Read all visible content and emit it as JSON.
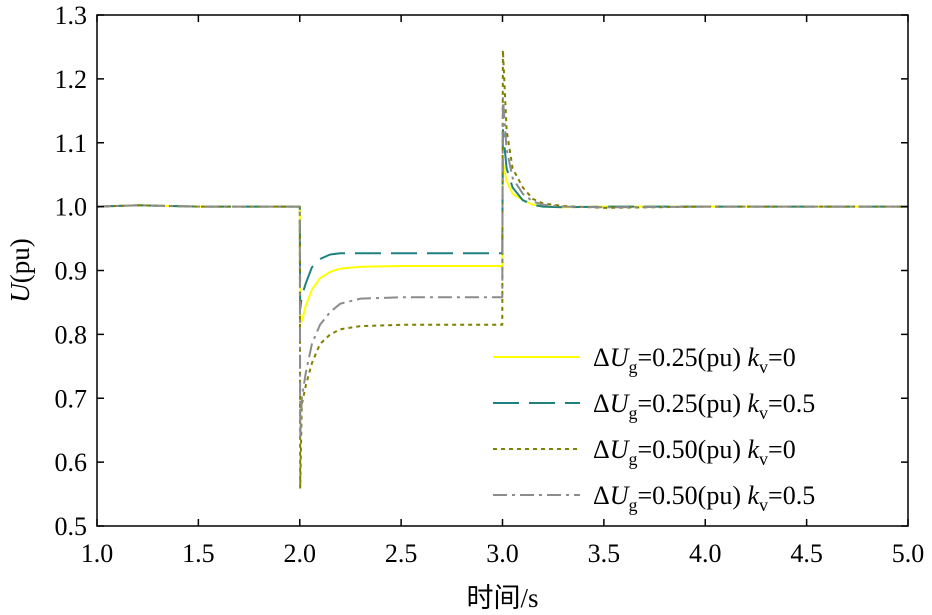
{
  "chart_data": {
    "type": "line",
    "xlabel": "时间/s",
    "ylabel": "U(pu)",
    "xlim": [
      1.0,
      5.0
    ],
    "ylim": [
      0.5,
      1.3
    ],
    "xticks": [
      "1.0",
      "1.5",
      "2.0",
      "2.5",
      "3.0",
      "3.5",
      "4.0",
      "4.5",
      "5.0"
    ],
    "yticks": [
      "0.5",
      "0.6",
      "0.7",
      "0.8",
      "0.9",
      "1.0",
      "1.1",
      "1.2",
      "1.3"
    ],
    "grid": false,
    "legend_position": "bottom-right",
    "series": [
      {
        "legend": {
          "delta": "ΔU",
          "sub": "g",
          "mid": "=0.25(pu) ",
          "k": "k",
          "ksub": "v",
          "tail": "=0"
        },
        "color": "#ffff00",
        "dash": "solid",
        "x": [
          1.0,
          1.2,
          1.5,
          1.99,
          2.0,
          2.002,
          2.01,
          2.03,
          2.06,
          2.1,
          2.15,
          2.2,
          2.3,
          2.5,
          2.999,
          3.0,
          3.002,
          3.02,
          3.05,
          3.1,
          3.15,
          3.2,
          3.3,
          3.5,
          4.0,
          5.0
        ],
        "y": [
          1.0,
          1.002,
          1.0,
          1.0,
          1.0,
          0.82,
          0.82,
          0.845,
          0.87,
          0.888,
          0.898,
          0.903,
          0.906,
          0.907,
          0.907,
          1.0,
          1.07,
          1.04,
          1.02,
          1.01,
          1.003,
          1.0,
          0.999,
          1.0,
          1.0,
          1.0
        ]
      },
      {
        "legend": {
          "delta": "ΔU",
          "sub": "g",
          "mid": "=0.25(pu) ",
          "k": "k",
          "ksub": "v",
          "tail": "=0.5"
        },
        "color": "#1f8080",
        "dash": "long-dash",
        "x": [
          1.0,
          1.2,
          1.5,
          1.99,
          2.0,
          2.002,
          2.01,
          2.03,
          2.06,
          2.1,
          2.15,
          2.2,
          2.5,
          2.999,
          3.0,
          3.002,
          3.02,
          3.05,
          3.1,
          3.15,
          3.2,
          3.3,
          3.5,
          4.0,
          5.0
        ],
        "y": [
          1.0,
          1.002,
          1.0,
          1.0,
          1.0,
          0.84,
          0.86,
          0.88,
          0.905,
          0.918,
          0.925,
          0.927,
          0.927,
          0.927,
          1.0,
          1.12,
          1.06,
          1.03,
          1.01,
          1.003,
          1.0,
          0.999,
          1.0,
          1.0,
          1.0
        ]
      },
      {
        "legend": {
          "delta": "ΔU",
          "sub": "g",
          "mid": "=0.50(pu) ",
          "k": "k",
          "ksub": "v",
          "tail": "=0"
        },
        "color": "#808000",
        "dash": "dotted",
        "x": [
          1.0,
          1.2,
          1.5,
          1.99,
          2.0,
          2.002,
          2.01,
          2.03,
          2.06,
          2.1,
          2.15,
          2.2,
          2.3,
          2.5,
          2.999,
          3.0,
          3.002,
          3.02,
          3.05,
          3.1,
          3.15,
          3.2,
          3.3,
          3.5,
          4.0,
          5.0
        ],
        "y": [
          1.0,
          1.002,
          1.0,
          1.0,
          1.0,
          0.56,
          0.69,
          0.72,
          0.755,
          0.785,
          0.8,
          0.808,
          0.813,
          0.815,
          0.815,
          1.0,
          1.245,
          1.12,
          1.06,
          1.03,
          1.012,
          1.005,
          1.001,
          0.998,
          1.0,
          1.0
        ]
      },
      {
        "legend": {
          "delta": "ΔU",
          "sub": "g",
          "mid": "=0.50(pu) ",
          "k": "k",
          "ksub": "v",
          "tail": "=0.5"
        },
        "color": "#8c8c8c",
        "dash": "dash-dot",
        "x": [
          1.0,
          1.2,
          1.5,
          1.99,
          2.0,
          2.002,
          2.01,
          2.03,
          2.06,
          2.1,
          2.15,
          2.2,
          2.3,
          2.5,
          2.999,
          3.0,
          3.002,
          3.02,
          3.05,
          3.1,
          3.15,
          3.2,
          3.3,
          3.5,
          4.0,
          5.0
        ],
        "y": [
          1.0,
          1.002,
          1.0,
          1.0,
          1.0,
          0.64,
          0.7,
          0.74,
          0.785,
          0.815,
          0.835,
          0.848,
          0.856,
          0.858,
          0.858,
          1.0,
          1.17,
          1.09,
          1.045,
          1.02,
          1.008,
          1.003,
          1.0,
          0.999,
          1.0,
          1.0
        ]
      }
    ]
  }
}
